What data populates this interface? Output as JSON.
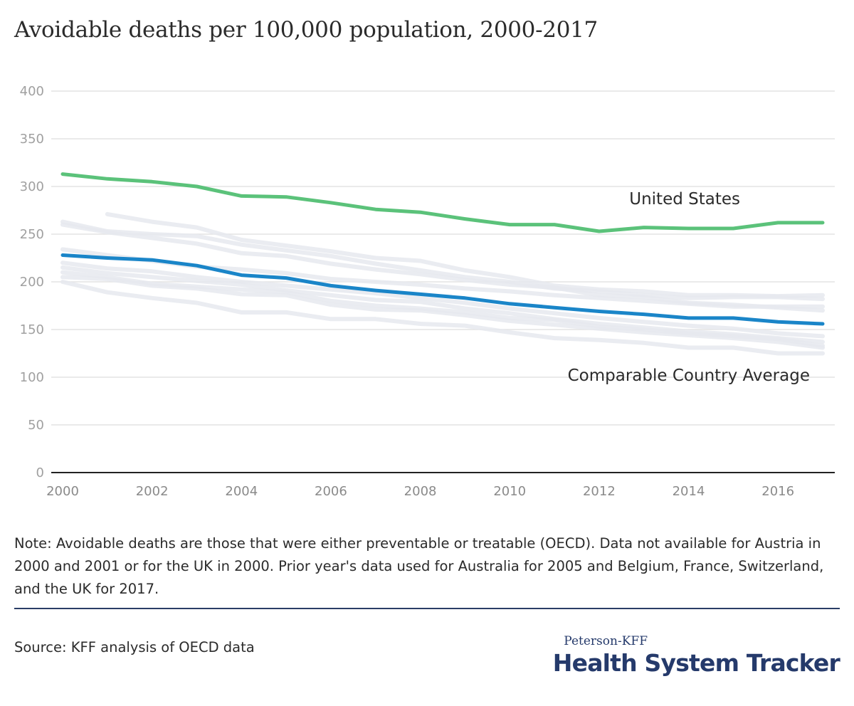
{
  "title": "Avoidable deaths per 100,000 population, 2000-2017",
  "note": "Note: Avoidable deaths are those that were either preventable or treatable (OECD). Data not available for Austria in 2000 and 2001 or for the UK in 2000. Prior year's data used for Australia for 2005 and Belgium, France, Switzerland, and the UK for 2017.",
  "source": "Source: KFF analysis of OECD data",
  "brand": {
    "top": "Peterson-KFF",
    "main": "Health System Tracker"
  },
  "chart_data": {
    "type": "line",
    "xlim": [
      2000,
      2017
    ],
    "ylim": [
      0,
      400
    ],
    "yticks": [
      0,
      50,
      100,
      150,
      200,
      250,
      300,
      350,
      400
    ],
    "xticks": [
      2000,
      2002,
      2004,
      2006,
      2008,
      2010,
      2012,
      2014,
      2016
    ],
    "grid": true,
    "x": [
      2000,
      2001,
      2002,
      2003,
      2004,
      2005,
      2006,
      2007,
      2008,
      2009,
      2010,
      2011,
      2012,
      2013,
      2014,
      2015,
      2016,
      2017
    ],
    "series": [
      {
        "name": "United States",
        "color": "#5bc27a",
        "emphasis": true,
        "values": [
          313,
          308,
          305,
          300,
          290,
          289,
          283,
          276,
          273,
          266,
          260,
          260,
          253,
          257,
          256,
          256,
          262,
          262
        ]
      },
      {
        "name": "Comparable Country Average",
        "color": "#1a85c8",
        "emphasis": true,
        "values": [
          228,
          225,
          223,
          217,
          207,
          204,
          196,
          191,
          187,
          183,
          177,
          173,
          169,
          166,
          162,
          162,
          158,
          156
        ]
      },
      {
        "color": "#e6e9ee",
        "values": [
          null,
          271,
          263,
          257,
          244,
          238,
          232,
          225,
          222,
          212,
          205,
          196,
          192,
          190,
          186,
          186,
          185,
          186
        ]
      },
      {
        "color": "#e6e9ee",
        "values": [
          263,
          253,
          250,
          248,
          239,
          233,
          227,
          219,
          212,
          205,
          200,
          193,
          190,
          186,
          183,
          184,
          184,
          182
        ]
      },
      {
        "color": "#e6e9ee",
        "values": [
          260,
          252,
          246,
          240,
          230,
          227,
          219,
          213,
          208,
          202,
          197,
          194,
          186,
          184,
          178,
          176,
          173,
          170
        ]
      },
      {
        "color": "#e6e9ee",
        "values": [
          234,
          228,
          222,
          216,
          213,
          209,
          203,
          200,
          197,
          193,
          190,
          186,
          183,
          180,
          177,
          174,
          174,
          174
        ]
      },
      {
        "color": "#e6e9ee",
        "values": [
          220,
          214,
          211,
          205,
          200,
          196,
          192,
          188,
          183,
          178,
          172,
          167,
          162,
          158,
          154,
          151,
          146,
          143
        ]
      },
      {
        "color": "#e6e9ee",
        "values": [
          215,
          209,
          205,
          201,
          197,
          191,
          186,
          181,
          179,
          172,
          167,
          161,
          156,
          152,
          148,
          145,
          141,
          137
        ]
      },
      {
        "color": "#e6e9ee",
        "values": [
          210,
          205,
          198,
          195,
          192,
          189,
          180,
          175,
          172,
          168,
          162,
          160,
          153,
          150,
          146,
          143,
          140,
          133
        ]
      },
      {
        "color": "#e6e9ee",
        "values": [
          205,
          203,
          196,
          193,
          187,
          186,
          176,
          171,
          170,
          165,
          159,
          155,
          151,
          147,
          144,
          141,
          137,
          131
        ]
      },
      {
        "color": "#e6e9ee",
        "values": [
          200,
          189,
          183,
          178,
          168,
          168,
          161,
          161,
          156,
          154,
          147,
          141,
          139,
          136,
          131,
          131,
          125,
          125
        ]
      }
    ]
  }
}
